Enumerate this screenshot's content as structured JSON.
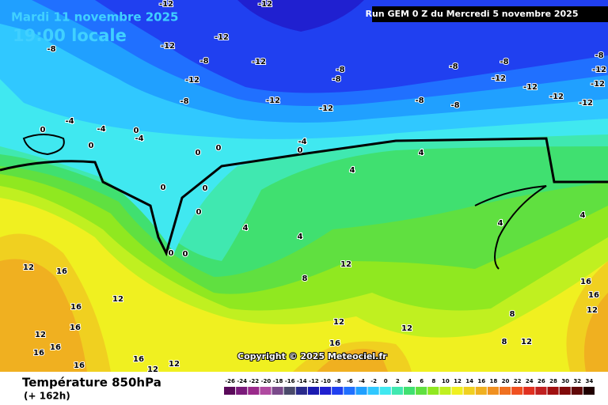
{
  "header": {
    "date": "Mardi 11 novembre 2025",
    "time": "19:00 locale",
    "run": "Run GEM 0 Z du Mercredi 5 novembre 2025"
  },
  "footer": {
    "title": "Température 850hPa",
    "lead": "(+ 162h)",
    "copyright": "Copyright © 2025 Meteociel.fr"
  },
  "contour_labels": [
    "-12",
    "-12",
    "-12",
    "-12",
    "-12",
    "-12",
    "-12",
    "-12",
    "-12",
    "-12",
    "-12",
    "-12",
    "-12",
    "-12",
    "-8",
    "-8",
    "-8",
    "-8",
    "-8",
    "-8",
    "-8",
    "-8",
    "-8",
    "-8",
    "-4",
    "-4",
    "-4",
    "-4",
    "0",
    "0",
    "0",
    "0",
    "0",
    "0",
    "0",
    "0",
    "0",
    "0",
    "0",
    "4",
    "4",
    "4",
    "4",
    "4",
    "4",
    "8",
    "8",
    "8",
    "12",
    "12",
    "12",
    "12",
    "12",
    "12",
    "12",
    "12",
    "12",
    "12",
    "16",
    "16",
    "16",
    "16",
    "16",
    "16",
    "16",
    "16",
    "16",
    "16"
  ],
  "colorbar": {
    "ticks": [
      -26,
      -24,
      -22,
      -20,
      -18,
      -16,
      -14,
      -12,
      -10,
      -8,
      -6,
      -4,
      -2,
      0,
      2,
      4,
      6,
      8,
      10,
      12,
      14,
      16,
      18,
      20,
      22,
      24,
      26,
      28,
      30,
      32,
      34
    ],
    "colors": [
      "#5a0a5a",
      "#7a1a7a",
      "#9a2a8a",
      "#b04aa0",
      "#7a4a8a",
      "#4a4a6a",
      "#2a2a8a",
      "#1a1ab0",
      "#2020d0",
      "#2040f0",
      "#2070ff",
      "#20a0ff",
      "#30c8ff",
      "#40e8f0",
      "#40e8b0",
      "#40e070",
      "#60e040",
      "#90e820",
      "#c0f020",
      "#f0f020",
      "#f0d020",
      "#f0b020",
      "#f09020",
      "#f07020",
      "#f05020",
      "#e03020",
      "#c02020",
      "#a01010",
      "#800a0a",
      "#600808",
      "#200000"
    ]
  }
}
